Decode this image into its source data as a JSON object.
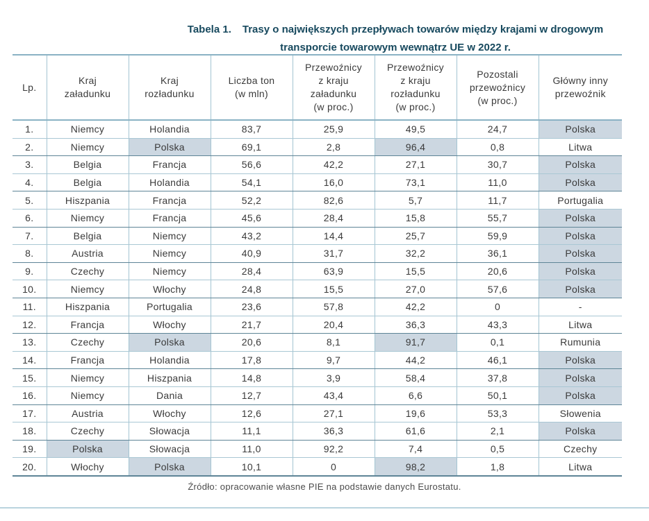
{
  "title": {
    "label": "Tabela 1.",
    "line1": "Trasy o największych przepływach towarów między krajami w drogowym",
    "line2": "transporcie towarowym wewnątrz UE w 2022 r."
  },
  "table": {
    "columns": [
      {
        "key": "lp",
        "label": "Lp."
      },
      {
        "key": "load",
        "label": "Kraj\nzaładunku"
      },
      {
        "key": "unload",
        "label": "Kraj\nrozładunku"
      },
      {
        "key": "tons",
        "label": "Liczba ton\n(w mln)"
      },
      {
        "key": "load_pct",
        "label": "Przewoźnicy\nz kraju\nzaładunku\n(w proc.)"
      },
      {
        "key": "unload_pct",
        "label": "Przewoźnicy\nz kraju\nrozładunku\n(w proc.)"
      },
      {
        "key": "other_pct",
        "label": "Pozostali\nprzewoźnicy\n(w proc.)"
      },
      {
        "key": "main",
        "label": "Główny inny\nprzewoźnik"
      }
    ],
    "rows": [
      {
        "lp": "1.",
        "load": "Niemcy",
        "unload": "Holandia",
        "tons": "83,7",
        "load_pct": "25,9",
        "unload_pct": "49,5",
        "other_pct": "24,7",
        "main": "Polska",
        "highlights": [
          "main"
        ]
      },
      {
        "lp": "2.",
        "load": "Niemcy",
        "unload": "Polska",
        "tons": "69,1",
        "load_pct": "2,8",
        "unload_pct": "96,4",
        "other_pct": "0,8",
        "main": "Litwa",
        "highlights": [
          "unload",
          "unload_pct"
        ]
      },
      {
        "lp": "3.",
        "load": "Belgia",
        "unload": "Francja",
        "tons": "56,6",
        "load_pct": "42,2",
        "unload_pct": "27,1",
        "other_pct": "30,7",
        "main": "Polska",
        "highlights": [
          "main"
        ]
      },
      {
        "lp": "4.",
        "load": "Belgia",
        "unload": "Holandia",
        "tons": "54,1",
        "load_pct": "16,0",
        "unload_pct": "73,1",
        "other_pct": "11,0",
        "main": "Polska",
        "highlights": [
          "main"
        ]
      },
      {
        "lp": "5.",
        "load": "Hiszpania",
        "unload": "Francja",
        "tons": "52,2",
        "load_pct": "82,6",
        "unload_pct": "5,7",
        "other_pct": "11,7",
        "main": "Portugalia",
        "highlights": []
      },
      {
        "lp": "6.",
        "load": "Niemcy",
        "unload": "Francja",
        "tons": "45,6",
        "load_pct": "28,4",
        "unload_pct": "15,8",
        "other_pct": "55,7",
        "main": "Polska",
        "highlights": [
          "main"
        ]
      },
      {
        "lp": "7.",
        "load": "Belgia",
        "unload": "Niemcy",
        "tons": "43,2",
        "load_pct": "14,4",
        "unload_pct": "25,7",
        "other_pct": "59,9",
        "main": "Polska",
        "highlights": [
          "main"
        ]
      },
      {
        "lp": "8.",
        "load": "Austria",
        "unload": "Niemcy",
        "tons": "40,9",
        "load_pct": "31,7",
        "unload_pct": "32,2",
        "other_pct": "36,1",
        "main": "Polska",
        "highlights": [
          "main"
        ]
      },
      {
        "lp": "9.",
        "load": "Czechy",
        "unload": "Niemcy",
        "tons": "28,4",
        "load_pct": "63,9",
        "unload_pct": "15,5",
        "other_pct": "20,6",
        "main": "Polska",
        "highlights": [
          "main"
        ]
      },
      {
        "lp": "10.",
        "load": "Niemcy",
        "unload": "Włochy",
        "tons": "24,8",
        "load_pct": "15,5",
        "unload_pct": "27,0",
        "other_pct": "57,6",
        "main": "Polska",
        "highlights": [
          "main"
        ]
      },
      {
        "lp": "11.",
        "load": "Hiszpania",
        "unload": "Portugalia",
        "tons": "23,6",
        "load_pct": "57,8",
        "unload_pct": "42,2",
        "other_pct": "0",
        "main": "-",
        "highlights": []
      },
      {
        "lp": "12.",
        "load": "Francja",
        "unload": "Włochy",
        "tons": "21,7",
        "load_pct": "20,4",
        "unload_pct": "36,3",
        "other_pct": "43,3",
        "main": "Litwa",
        "highlights": []
      },
      {
        "lp": "13.",
        "load": "Czechy",
        "unload": "Polska",
        "tons": "20,6",
        "load_pct": "8,1",
        "unload_pct": "91,7",
        "other_pct": "0,1",
        "main": "Rumunia",
        "highlights": [
          "unload",
          "unload_pct"
        ]
      },
      {
        "lp": "14.",
        "load": "Francja",
        "unload": "Holandia",
        "tons": "17,8",
        "load_pct": "9,7",
        "unload_pct": "44,2",
        "other_pct": "46,1",
        "main": "Polska",
        "highlights": [
          "main"
        ]
      },
      {
        "lp": "15.",
        "load": "Niemcy",
        "unload": "Hiszpania",
        "tons": "14,8",
        "load_pct": "3,9",
        "unload_pct": "58,4",
        "other_pct": "37,8",
        "main": "Polska",
        "highlights": [
          "main"
        ]
      },
      {
        "lp": "16.",
        "load": "Niemcy",
        "unload": "Dania",
        "tons": "12,7",
        "load_pct": "43,4",
        "unload_pct": "6,6",
        "other_pct": "50,1",
        "main": "Polska",
        "highlights": [
          "main"
        ]
      },
      {
        "lp": "17.",
        "load": "Austria",
        "unload": "Włochy",
        "tons": "12,6",
        "load_pct": "27,1",
        "unload_pct": "19,6",
        "other_pct": "53,3",
        "main": "Słowenia",
        "highlights": []
      },
      {
        "lp": "18.",
        "load": "Czechy",
        "unload": "Słowacja",
        "tons": "11,1",
        "load_pct": "36,3",
        "unload_pct": "61,6",
        "other_pct": "2,1",
        "main": "Polska",
        "highlights": [
          "main"
        ]
      },
      {
        "lp": "19.",
        "load": "Polska",
        "unload": "Słowacja",
        "tons": "11,0",
        "load_pct": "92,2",
        "unload_pct": "7,4",
        "other_pct": "0,5",
        "main": "Czechy",
        "highlights": [
          "load"
        ]
      },
      {
        "lp": "20.",
        "load": "Włochy",
        "unload": "Polska",
        "tons": "10,1",
        "load_pct": "0",
        "unload_pct": "98,2",
        "other_pct": "1,8",
        "main": "Litwa",
        "highlights": [
          "unload",
          "unload_pct"
        ]
      }
    ]
  },
  "footer": {
    "source": "Źródło: opracowanie własne PIE na podstawie danych Eurostatu."
  },
  "colors": {
    "title_text": "#17495e",
    "grid_light": "#a3c4d2",
    "grid_dark": "#5d8496",
    "highlight_bg": "#ccd7e1",
    "body_text": "#3a3a3a"
  }
}
